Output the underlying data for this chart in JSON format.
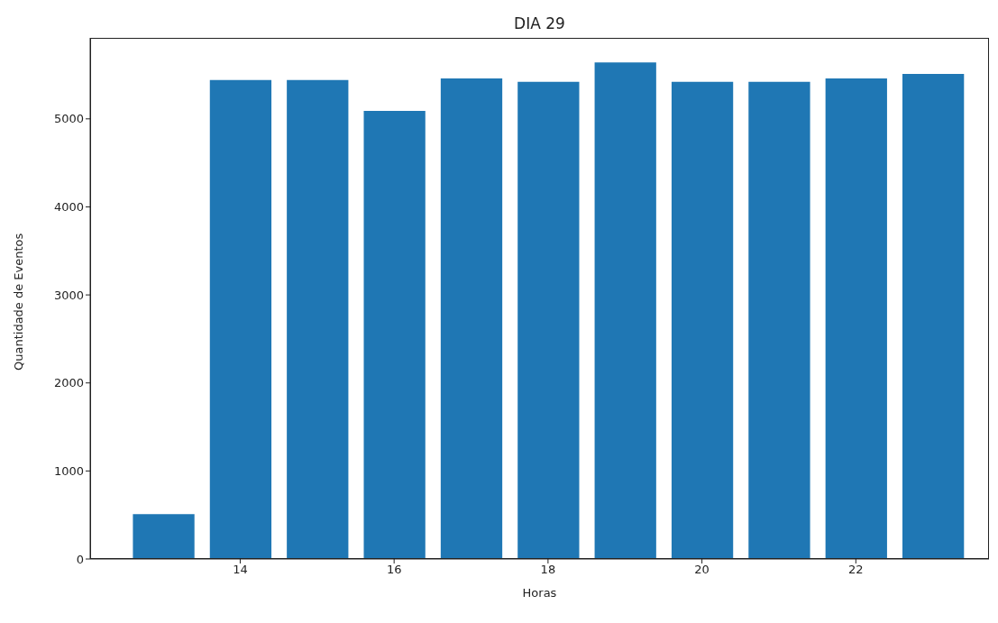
{
  "chart_data": {
    "type": "bar",
    "title": "DIA 29",
    "xlabel": "Horas",
    "ylabel": "Quantidade de Eventos",
    "x": [
      13,
      14,
      15,
      16,
      17,
      18,
      19,
      20,
      21,
      22,
      23
    ],
    "values": [
      510,
      5440,
      5440,
      5090,
      5460,
      5420,
      5640,
      5420,
      5420,
      5460,
      5510
    ],
    "color": "#1f77b4",
    "xlim": [
      12.05,
      23.73
    ],
    "xticks": [
      14,
      16,
      18,
      20,
      22
    ],
    "ylim": [
      0,
      5920
    ],
    "yticks": [
      0,
      1000,
      2000,
      3000,
      4000,
      5000
    ],
    "grid": false
  }
}
